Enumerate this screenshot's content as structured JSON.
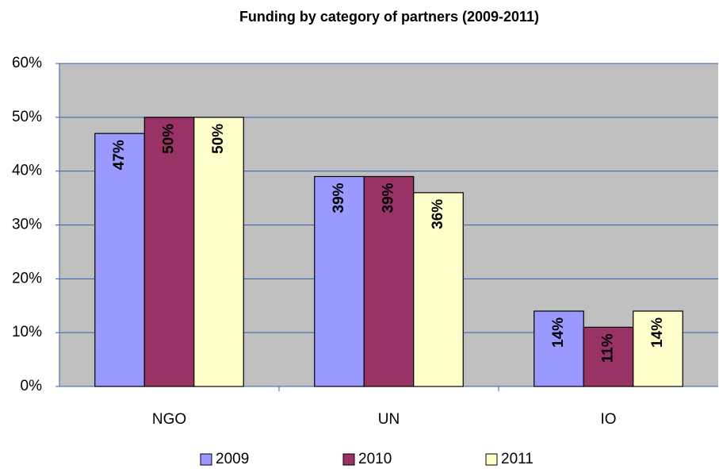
{
  "chart_data": {
    "type": "bar",
    "title": "Funding by category of partners (2009-2011)",
    "categories": [
      "NGO",
      "UN",
      "IO"
    ],
    "series": [
      {
        "name": "2009",
        "color": "#9999ff",
        "values": [
          47,
          39,
          14
        ],
        "value_labels": [
          "47%",
          "39%",
          "14%"
        ]
      },
      {
        "name": "2010",
        "color": "#993366",
        "values": [
          50,
          39,
          11
        ],
        "value_labels": [
          "50%",
          "39%",
          "11%"
        ]
      },
      {
        "name": "2011",
        "color": "#ffffcc",
        "values": [
          50,
          36,
          14
        ],
        "value_labels": [
          "50%",
          "36%",
          "14%"
        ]
      }
    ],
    "ylim": [
      0,
      60
    ],
    "yticks": [
      {
        "value": 0,
        "label": "0%"
      },
      {
        "value": 10,
        "label": "10%"
      },
      {
        "value": 20,
        "label": "20%"
      },
      {
        "value": 30,
        "label": "30%"
      },
      {
        "value": 40,
        "label": "40%"
      },
      {
        "value": 50,
        "label": "50%"
      },
      {
        "value": 60,
        "label": "60%"
      }
    ],
    "grid": true,
    "legend": "bottom"
  }
}
